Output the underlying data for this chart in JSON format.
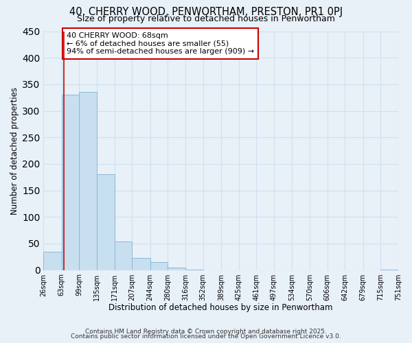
{
  "title": "40, CHERRY WOOD, PENWORTHAM, PRESTON, PR1 0PJ",
  "subtitle": "Size of property relative to detached houses in Penwortham",
  "xlabel": "Distribution of detached houses by size in Penwortham",
  "ylabel": "Number of detached properties",
  "bar_color": "#c8dff0",
  "bar_edge_color": "#8ab8d8",
  "background_color": "#e8f0f8",
  "grid_color": "#d0e0f0",
  "annotation_text": "40 CHERRY WOOD: 68sqm\n← 6% of detached houses are smaller (55)\n94% of semi-detached houses are larger (909) →",
  "property_line_x": 68,
  "property_line_color": "#cc0000",
  "ylim": [
    0,
    450
  ],
  "yticks": [
    0,
    50,
    100,
    150,
    200,
    250,
    300,
    350,
    400,
    450
  ],
  "bin_edges": [
    26,
    63,
    99,
    135,
    171,
    207,
    244,
    280,
    316,
    352,
    389,
    425,
    461,
    497,
    534,
    570,
    606,
    642,
    679,
    715,
    751
  ],
  "bar_heights": [
    35,
    330,
    336,
    180,
    54,
    23,
    15,
    5,
    1,
    0,
    0,
    0,
    0,
    0,
    0,
    0,
    0,
    0,
    0,
    1
  ],
  "tick_labels": [
    "26sqm",
    "63sqm",
    "99sqm",
    "135sqm",
    "171sqm",
    "207sqm",
    "244sqm",
    "280sqm",
    "316sqm",
    "352sqm",
    "389sqm",
    "425sqm",
    "461sqm",
    "497sqm",
    "534sqm",
    "570sqm",
    "606sqm",
    "642sqm",
    "679sqm",
    "715sqm",
    "751sqm"
  ],
  "footer_line1": "Contains HM Land Registry data © Crown copyright and database right 2025.",
  "footer_line2": "Contains public sector information licensed under the Open Government Licence v3.0.",
  "title_fontsize": 10.5,
  "subtitle_fontsize": 9,
  "axis_label_fontsize": 8.5,
  "tick_fontsize": 7,
  "annotation_fontsize": 8,
  "footer_fontsize": 6.5
}
